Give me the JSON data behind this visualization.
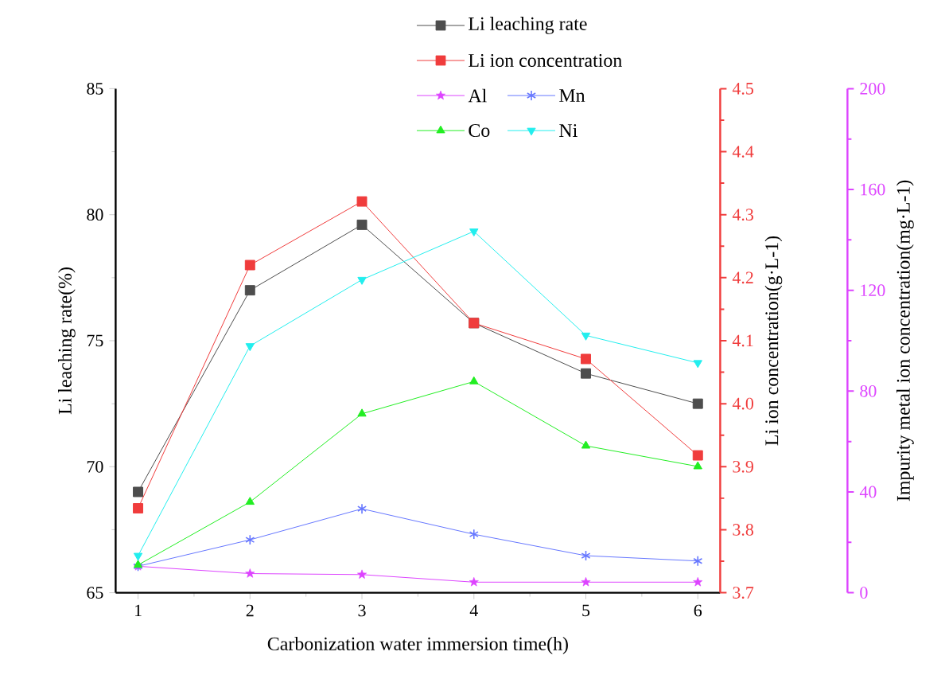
{
  "chart_data": {
    "type": "line",
    "xlabel": "Carbonization water immersion time(h)",
    "ylabel": "Li leaching rate(%)",
    "y2label": "Li ion concentration(g·L-1)",
    "y3label": "Impurity metal ion concentration(mg·L-1)",
    "x": [
      1,
      2,
      3,
      4,
      5,
      6
    ],
    "xlim": [
      0.8,
      6.2
    ],
    "xticks": [
      1,
      2,
      3,
      4,
      5,
      6
    ],
    "ylim": [
      65,
      85
    ],
    "yticks": [
      65,
      70,
      75,
      80,
      85
    ],
    "y2lim": [
      3.7,
      4.5
    ],
    "y2ticks": [
      3.7,
      3.8,
      3.9,
      {
        "value": 4,
        "label": "4.0"
      },
      4.1,
      4.2,
      4.3,
      4.4,
      4.5
    ],
    "y3lim": [
      0,
      200
    ],
    "y3ticks": [
      0,
      40,
      80,
      120,
      160,
      200
    ],
    "legend": "top right",
    "grid": false,
    "line_style": "solid",
    "series": [
      {
        "name": "Li leaching rate",
        "color": "#4d4d4d",
        "marker": "square",
        "values": [
          69.0,
          77.0,
          79.6,
          75.7,
          73.7,
          72.5
        ]
      },
      {
        "name": "Li ion concentration",
        "color": "#f03c3c",
        "marker": "square",
        "axis": "y2",
        "values": [
          3.834,
          4.22,
          4.321,
          4.128,
          4.071,
          3.918
        ]
      },
      {
        "name": "Al",
        "color": "#dd44ff",
        "marker": "star",
        "axis": "y3",
        "values": [
          10.5,
          7.6,
          7.2,
          4.2,
          4.2,
          4.2
        ]
      },
      {
        "name": "Mn",
        "color": "#6677ff",
        "marker": "cross",
        "axis": "y3",
        "values": [
          10.5,
          21,
          33.3,
          23.2,
          14.7,
          12.6
        ]
      },
      {
        "name": "Co",
        "color": "#22ee22",
        "marker": "triangle",
        "axis": "y3",
        "values": [
          11,
          36,
          71,
          83.8,
          58.3,
          50.1
        ]
      },
      {
        "name": "Ni",
        "color": "#22eeee",
        "marker": "triangle down",
        "axis": "y3",
        "values": [
          14.7,
          97.9,
          124.2,
          143.4,
          102.1,
          91.2
        ]
      }
    ]
  }
}
